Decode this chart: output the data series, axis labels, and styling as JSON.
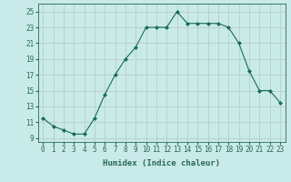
{
  "x": [
    0,
    1,
    2,
    3,
    4,
    5,
    6,
    7,
    8,
    9,
    10,
    11,
    12,
    13,
    14,
    15,
    16,
    17,
    18,
    19,
    20,
    21,
    22,
    23
  ],
  "y": [
    11.5,
    10.5,
    10.0,
    9.5,
    9.5,
    11.5,
    14.5,
    17.0,
    19.0,
    20.5,
    23.0,
    23.0,
    23.0,
    25.0,
    23.5,
    23.5,
    23.5,
    23.5,
    23.0,
    21.0,
    17.5,
    15.0,
    15.0,
    13.5
  ],
  "line_color": "#1a6b5a",
  "marker": "D",
  "marker_size": 2.0,
  "bg_color": "#c8eae8",
  "grid_color_major": "#b8c8c0",
  "grid_color_minor": "#d8e8e0",
  "xlabel": "Humidex (Indice chaleur)",
  "xlim": [
    -0.5,
    23.5
  ],
  "ylim": [
    8.5,
    26.0
  ],
  "xticks": [
    0,
    1,
    2,
    3,
    4,
    5,
    6,
    7,
    8,
    9,
    10,
    11,
    12,
    13,
    14,
    15,
    16,
    17,
    18,
    19,
    20,
    21,
    22,
    23
  ],
  "yticks": [
    9,
    11,
    13,
    15,
    17,
    19,
    21,
    23,
    25
  ],
  "tick_color": "#2a6858",
  "label_fontsize": 6.5,
  "tick_fontsize": 5.5,
  "lw": 0.8
}
